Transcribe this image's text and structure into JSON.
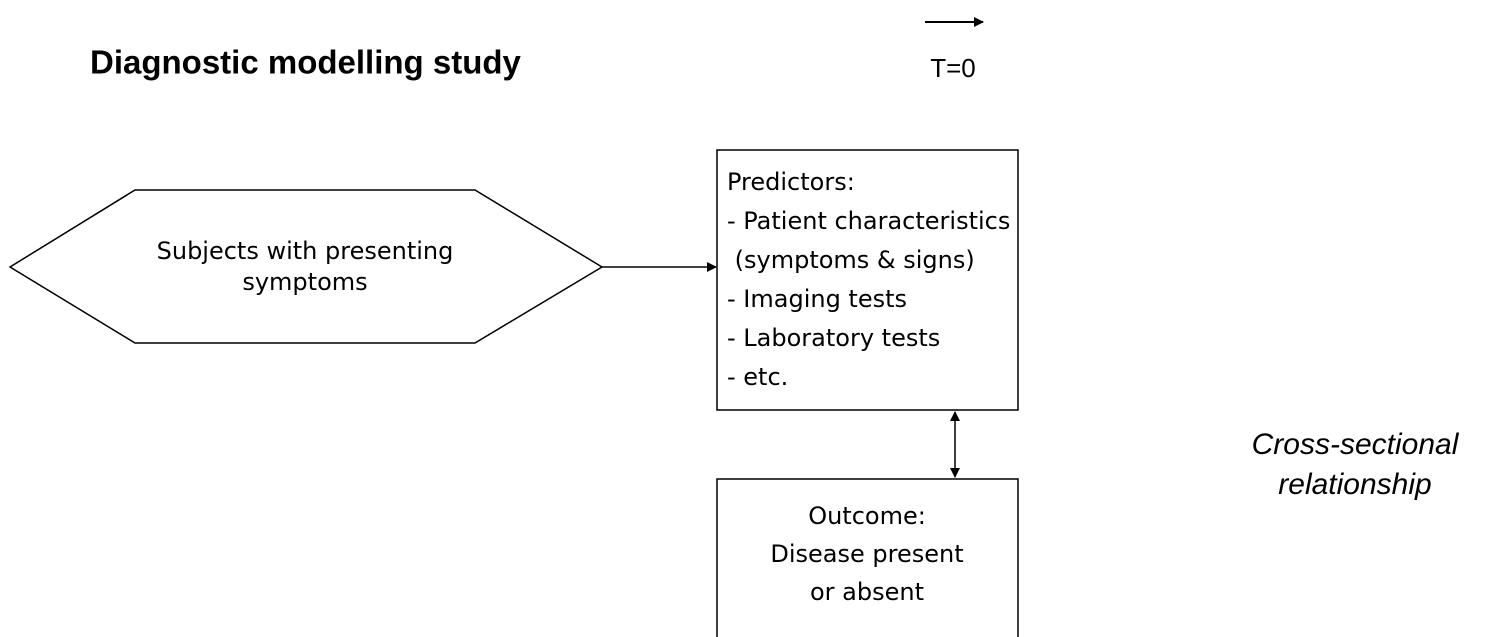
{
  "title": "Diagnostic modelling study",
  "time_label": "T=0",
  "nodes": [
    {
      "lines": [
        "Subjects with presenting",
        "symptoms"
      ]
    },
    {
      "lines": [
        "Predictors:",
        "- Patient characteristics",
        " (symptoms & signs)",
        "- Imaging tests",
        "- Laboratory tests",
        "- etc."
      ]
    },
    {
      "lines": [
        "Outcome:",
        "Disease present",
        "or absent"
      ]
    }
  ],
  "relationship": [
    "Cross-sectional",
    "relationship"
  ]
}
